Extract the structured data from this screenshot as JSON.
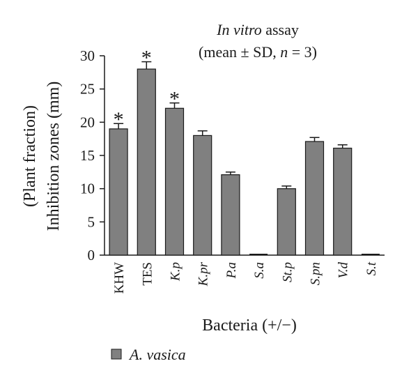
{
  "chart_data": {
    "type": "bar",
    "title_line1_italic": "In vitro",
    "title_line1_rest": " assay",
    "title_line2_a": "(mean ± SD, ",
    "title_line2_n": "n",
    "title_line2_b": " = 3)",
    "ylabel_line1": "(Plant fraction)",
    "ylabel_line2": "Inhibition zones (mm)",
    "xlabel": "Bacteria (+/−)",
    "ylim": [
      0,
      30
    ],
    "yticks": [
      "0",
      "5",
      "10",
      "15",
      "20",
      "25",
      "30"
    ],
    "categories": [
      "KHW",
      "TES",
      "K.p",
      "K.pr",
      "P.a",
      "S.a",
      "St.p",
      "S.pn",
      "V.d",
      "S.t"
    ],
    "category_italic": [
      false,
      false,
      true,
      true,
      true,
      true,
      true,
      true,
      true,
      true
    ],
    "series": [
      {
        "name": "A. vasica",
        "color": "#808080",
        "values": [
          19,
          28,
          22.1,
          18,
          12.1,
          0,
          10,
          17.1,
          16.1,
          0
        ],
        "errors": [
          0.8,
          1.1,
          0.8,
          0.7,
          0.4,
          0,
          0.4,
          0.6,
          0.5,
          0
        ]
      }
    ],
    "significance_marker": "*",
    "significant": [
      true,
      true,
      true,
      false,
      false,
      false,
      false,
      false,
      false,
      false
    ],
    "grid": false,
    "legend_position": "bottom-left"
  }
}
